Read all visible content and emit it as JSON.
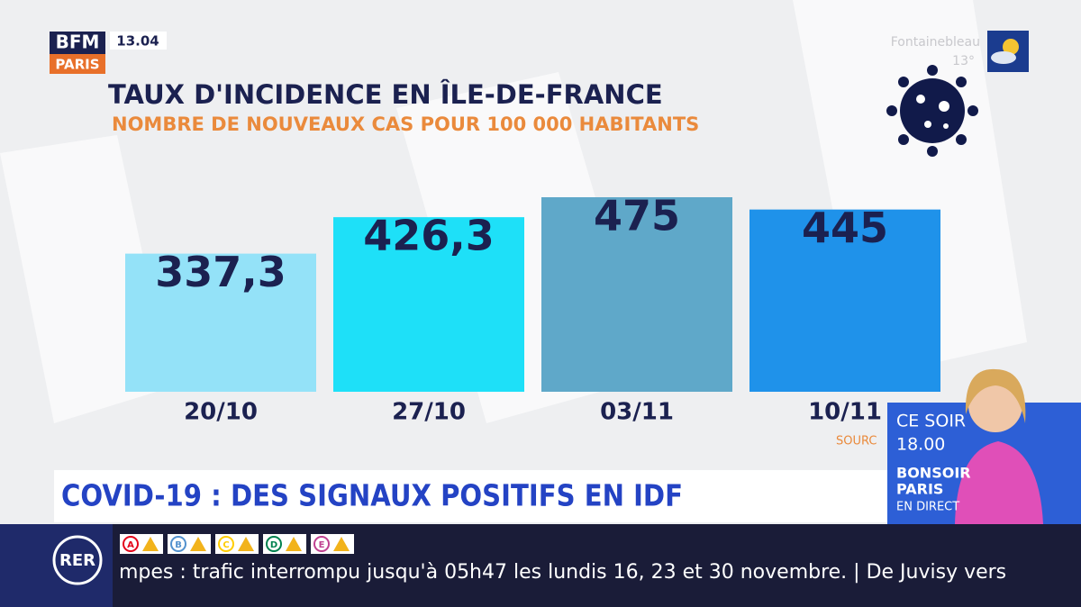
{
  "chart_data": {
    "type": "bar",
    "title": "TAUX D'INCIDENCE EN ÎLE-DE-FRANCE",
    "subtitle": "NOMBRE DE NOUVEAUX CAS POUR 100 000 HABITANTS",
    "categories": [
      "20/10",
      "27/10",
      "03/11",
      "10/11"
    ],
    "values": [
      337.3,
      426.3,
      475,
      445
    ],
    "value_labels": [
      "337,3",
      "426,3",
      "475",
      "445"
    ],
    "colors": [
      "#94e2f8",
      "#1ee0f8",
      "#5fa8c9",
      "#1f92ea"
    ],
    "source": "SOURC"
  },
  "screen": {
    "logo_top": "BFM",
    "logo_bottom": "PARIS",
    "time": "13.04",
    "weather_city": "Fontainebleau",
    "weather_temp": "13°",
    "headline": "COVID-19 : DES SIGNAUX POSITIFS EN IDF",
    "promo": [
      "CE SOIR",
      "18.00",
      "BONSOIR",
      "PARIS",
      "EN DIRECT"
    ],
    "ticker_label": "RER",
    "lines": [
      "A",
      "B",
      "C",
      "D",
      "E"
    ],
    "ticker": "mpes : trafic interrompu jusqu'à 05h47 les lundis 16, 23 et 30 novembre. | De Juvisy vers"
  }
}
